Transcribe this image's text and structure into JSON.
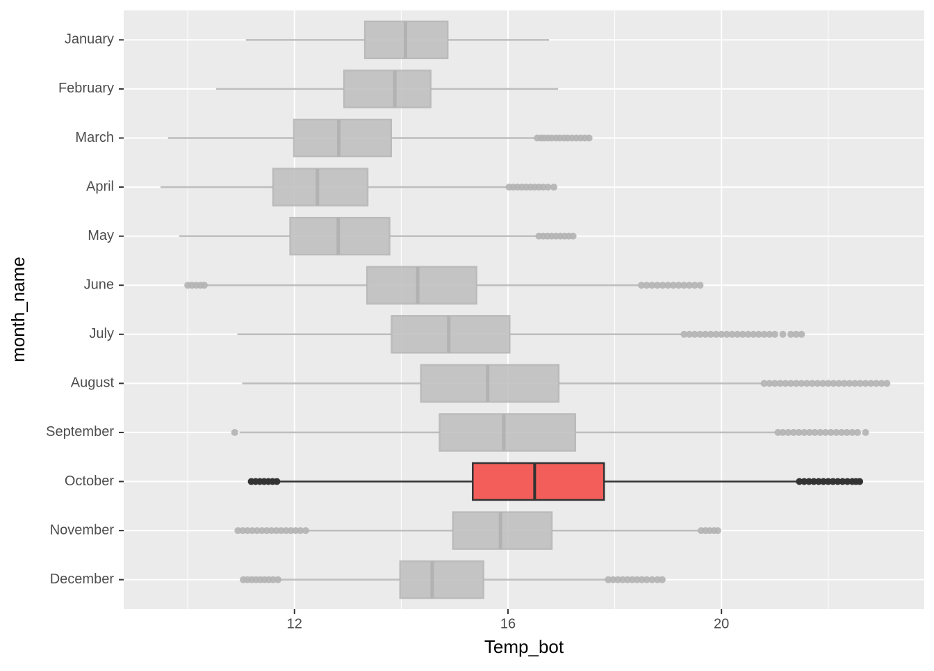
{
  "chart_data": {
    "type": "boxplot",
    "x_label": "Temp_bot",
    "y_label": "month_name",
    "xlim": [
      8.8,
      23.8
    ],
    "xticks": [
      12,
      16,
      20
    ],
    "grid": true,
    "categories": [
      "January",
      "February",
      "March",
      "April",
      "May",
      "June",
      "July",
      "August",
      "September",
      "October",
      "November",
      "December"
    ],
    "boxes": [
      {
        "low": 11.09,
        "q1": 13.32,
        "median": 14.08,
        "q3": 14.87,
        "high": 16.77,
        "outliers": [],
        "color": "#bebebe",
        "line_color": "#b3b3b3"
      },
      {
        "low": 10.53,
        "q1": 12.93,
        "median": 13.88,
        "q3": 14.55,
        "high": 16.94,
        "outliers": [],
        "color": "#bebebe",
        "line_color": "#b3b3b3"
      },
      {
        "low": 9.63,
        "q1": 11.99,
        "median": 12.83,
        "q3": 13.81,
        "high": 16.51,
        "outliers": [
          16.55,
          16.62,
          16.68,
          16.75,
          16.82,
          16.9,
          16.97,
          17.05,
          17.12,
          17.2,
          17.28,
          17.36,
          17.44,
          17.52
        ],
        "color": "#bebebe",
        "line_color": "#b3b3b3"
      },
      {
        "low": 9.49,
        "q1": 11.6,
        "median": 12.43,
        "q3": 13.37,
        "high": 15.99,
        "outliers": [
          16.02,
          16.1,
          16.18,
          16.26,
          16.34,
          16.42,
          16.5,
          16.58,
          16.66,
          16.75,
          16.86
        ],
        "color": "#bebebe",
        "line_color": "#b3b3b3"
      },
      {
        "low": 9.84,
        "q1": 11.92,
        "median": 12.82,
        "q3": 13.78,
        "high": 16.55,
        "outliers": [
          16.58,
          16.66,
          16.74,
          16.82,
          16.9,
          16.98,
          17.06,
          17.14,
          17.22
        ],
        "color": "#bebebe",
        "line_color": "#b3b3b3"
      },
      {
        "low": 10.35,
        "q1": 13.36,
        "median": 14.31,
        "q3": 15.41,
        "high": 18.46,
        "outliers": [
          10.0,
          10.08,
          10.16,
          10.24,
          10.31,
          18.5,
          18.6,
          18.7,
          18.8,
          18.9,
          19.0,
          19.1,
          19.2,
          19.3,
          19.4,
          19.5,
          19.6
        ],
        "color": "#bebebe",
        "line_color": "#b3b3b3"
      },
      {
        "low": 10.93,
        "q1": 13.82,
        "median": 14.89,
        "q3": 16.03,
        "high": 19.28,
        "outliers": [
          19.3,
          19.4,
          19.5,
          19.6,
          19.7,
          19.8,
          19.9,
          20.0,
          20.1,
          20.2,
          20.3,
          20.4,
          20.5,
          20.6,
          20.7,
          20.8,
          20.9,
          21.0,
          21.15,
          21.3,
          21.4,
          21.5
        ],
        "color": "#bebebe",
        "line_color": "#b3b3b3"
      },
      {
        "low": 11.02,
        "q1": 14.37,
        "median": 15.62,
        "q3": 16.95,
        "high": 20.77,
        "outliers": [
          20.8,
          20.9,
          21.0,
          21.1,
          21.2,
          21.3,
          21.4,
          21.5,
          21.6,
          21.7,
          21.8,
          21.9,
          22.0,
          22.1,
          22.2,
          22.3,
          22.4,
          22.5,
          22.6,
          22.7,
          22.8,
          22.9,
          23.0,
          23.1
        ],
        "color": "#bebebe",
        "line_color": "#b3b3b3"
      },
      {
        "low": 10.97,
        "q1": 14.72,
        "median": 15.92,
        "q3": 17.26,
        "high": 21.03,
        "outliers": [
          10.88,
          21.06,
          21.15,
          21.25,
          21.35,
          21.45,
          21.55,
          21.65,
          21.75,
          21.85,
          21.95,
          22.05,
          22.15,
          22.25,
          22.35,
          22.45,
          22.55,
          22.7
        ],
        "color": "#bebebe",
        "line_color": "#b3b3b3"
      },
      {
        "low": 11.69,
        "q1": 15.34,
        "median": 16.5,
        "q3": 17.8,
        "high": 21.43,
        "outliers": [
          11.19,
          11.27,
          11.35,
          11.43,
          11.51,
          11.59,
          11.67,
          21.46,
          21.55,
          21.64,
          21.73,
          21.82,
          21.91,
          22.0,
          22.09,
          22.18,
          22.27,
          22.36,
          22.45,
          22.52,
          22.59
        ],
        "color": "#f35e5a",
        "line_color": "#333333"
      },
      {
        "low": 12.21,
        "q1": 14.97,
        "median": 15.86,
        "q3": 16.82,
        "high": 19.58,
        "outliers": [
          10.94,
          11.03,
          11.12,
          11.21,
          11.3,
          11.39,
          11.48,
          11.57,
          11.66,
          11.75,
          11.84,
          11.93,
          12.02,
          12.11,
          12.21,
          19.62,
          19.7,
          19.78,
          19.86,
          19.93
        ],
        "color": "#bebebe",
        "line_color": "#b3b3b3"
      },
      {
        "low": 11.7,
        "q1": 13.98,
        "median": 14.58,
        "q3": 15.54,
        "high": 17.85,
        "outliers": [
          11.04,
          11.12,
          11.2,
          11.28,
          11.36,
          11.44,
          11.52,
          11.6,
          11.69,
          17.88,
          17.97,
          18.06,
          18.15,
          18.24,
          18.33,
          18.42,
          18.51,
          18.6,
          18.7,
          18.8,
          18.89
        ],
        "color": "#bebebe",
        "line_color": "#b3b3b3"
      }
    ]
  }
}
